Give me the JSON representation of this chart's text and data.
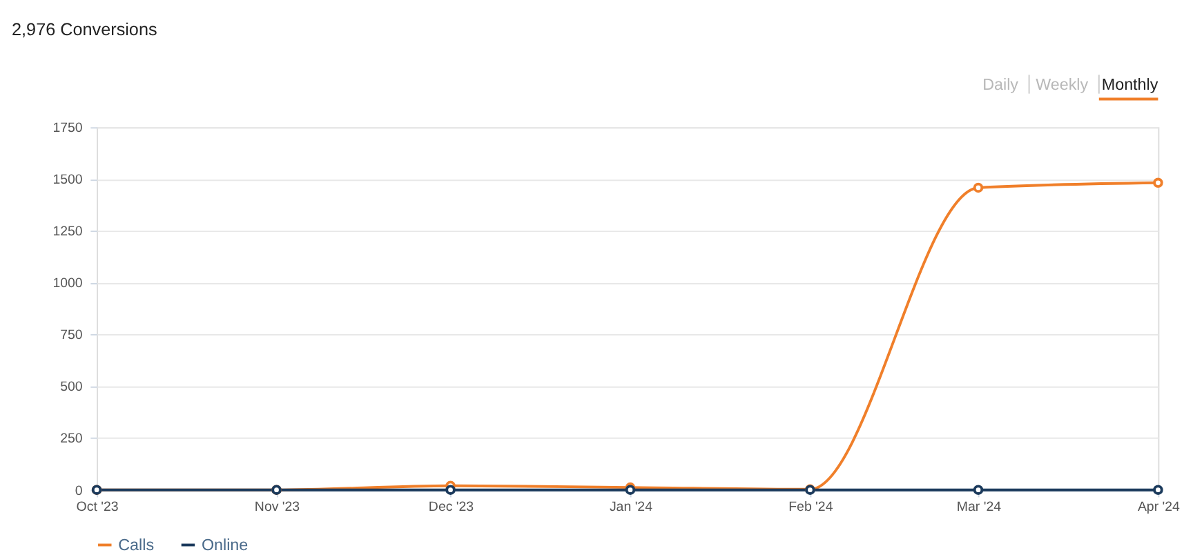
{
  "chart_data": {
    "type": "line",
    "title": "2,976 Conversions",
    "annotations": [
      "Daily",
      "Weekly",
      "Monthly"
    ],
    "x": [
      "2023-10",
      "2023-11",
      "2023-12",
      "2024-01",
      "2024-02",
      "2024-03",
      "2024-04"
    ],
    "series": [
      {
        "name": "Calls",
        "color": "#f07f2a",
        "values": [
          0,
          0,
          20,
          12,
          3,
          1458,
          1482
        ]
      },
      {
        "name": "Online",
        "color": "#1b3a5c",
        "values": [
          0,
          0,
          0,
          0,
          0,
          0,
          0
        ]
      }
    ],
    "xlim": [
      "2023-10",
      "2024-04"
    ],
    "xticks": [
      {
        "value": "2023-10",
        "label": "Oct '23"
      },
      {
        "value": "2023-11",
        "label": "Nov '23"
      },
      {
        "value": "2023-12",
        "label": "Dec '23"
      },
      {
        "value": "2024-01",
        "label": "Jan '24"
      },
      {
        "value": "2024-02",
        "label": "Feb '24"
      },
      {
        "value": "2024-03",
        "label": "Mar '24"
      },
      {
        "value": "2024-04",
        "label": "Apr '24"
      }
    ],
    "ylim": [
      0,
      1750
    ],
    "yticks": [
      0,
      250,
      500,
      750,
      1000,
      1250,
      1500,
      1750
    ],
    "grid": "y",
    "legend": "bottom",
    "marker": "circle",
    "line_style": "solid"
  }
}
